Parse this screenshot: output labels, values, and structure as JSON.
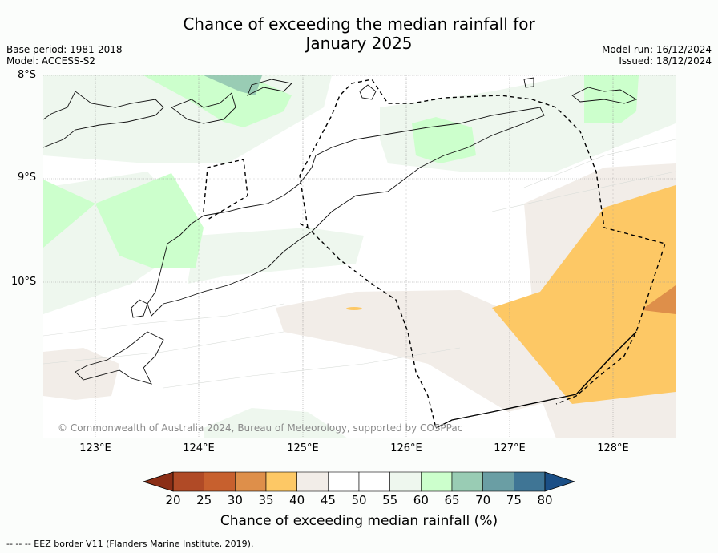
{
  "title_line1": "Chance of exceeding the median rainfall for",
  "title_line2": "January 2025",
  "base_period": "Base period: 1981-2018",
  "model": "Model: ACCESS-S2",
  "model_run": "Model run: 16/12/2024",
  "issued": "Issued: 18/12/2024",
  "lat_labels": [
    "8°S",
    "9°S",
    "10°S"
  ],
  "lon_labels": [
    "123°E",
    "124°E",
    "125°E",
    "126°E",
    "127°E",
    "128°E"
  ],
  "copyright": "© Commonwealth of Australia 2024, Bureau of Meteorology, supported by COSPPac",
  "colorbar": {
    "title": "Chance of exceeding median rainfall (%)",
    "ticks": [
      "20",
      "25",
      "30",
      "35",
      "40",
      "45",
      "50",
      "55",
      "60",
      "65",
      "70",
      "75",
      "80"
    ],
    "colors": [
      "#b04a26",
      "#c7602e",
      "#de8f4a",
      "#fdc865",
      "#f2ede8",
      "#ffffff",
      "#ffffff",
      "#eef7ee",
      "#ccffcc",
      "#99ccb4",
      "#6a9ea4",
      "#3f7595"
    ],
    "low_extend_color": "#8b2e16",
    "high_extend_color": "#1b4f86"
  },
  "footnote": "--  --  -- EEZ border V11 (Flanders Marine Institute, 2019)."
}
